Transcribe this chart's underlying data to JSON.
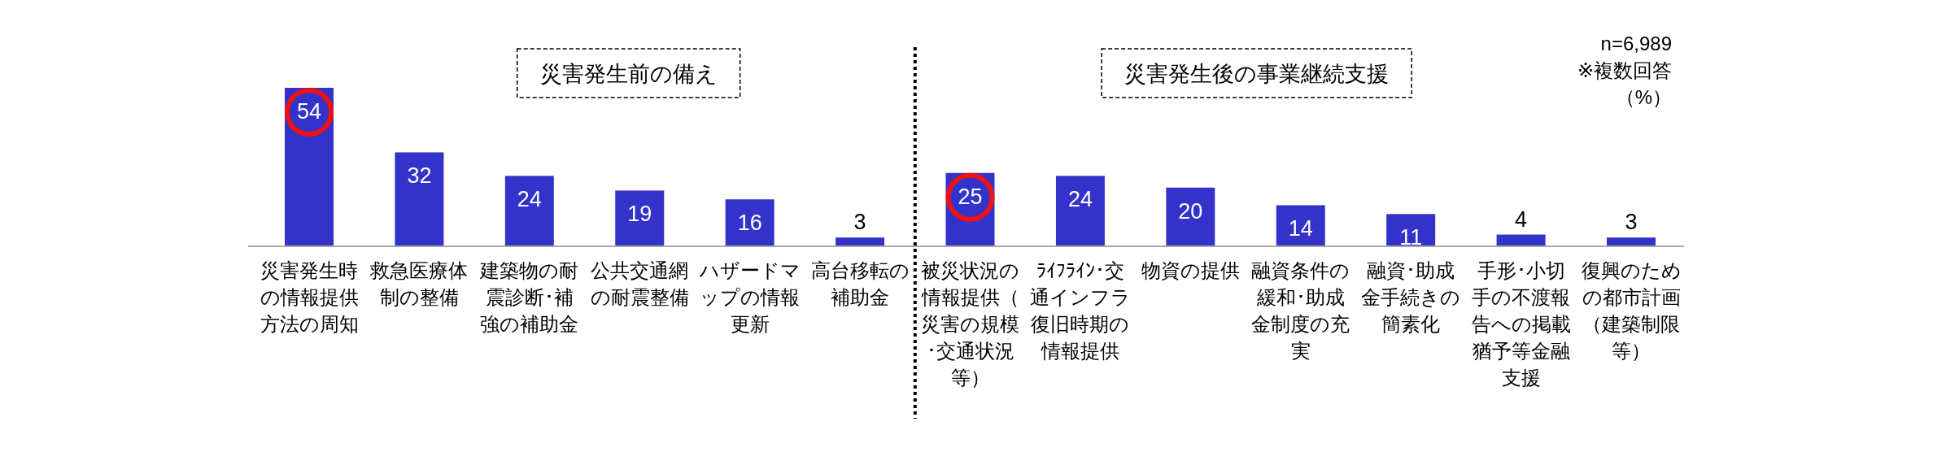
{
  "chart_data": {
    "type": "bar",
    "color": "#3333cc",
    "data_labels": true,
    "categories": [
      "災害発生時の情報提供方法の周知",
      "救急医療体制の整備",
      "建築物の耐震診断･補強の補助金",
      "公共交通網の耐震整備",
      "ハザードマップの情報更新",
      "高台移転の補助金",
      "被災状況の情報提供（災害の規模･交通状況等）",
      "ﾗｲﾌﾗｲﾝ･交通インフラ復旧時期の情報提供",
      "物資の提供",
      "融資条件の緩和･助成金制度の充実",
      "融資･助成金手続きの簡素化",
      "手形･小切手の不渡報告への掲載猶予等金融支援",
      "復興のための都市計画（建築制限等）"
    ],
    "values": [
      54,
      32,
      24,
      19,
      16,
      3,
      25,
      24,
      20,
      14,
      11,
      4,
      3
    ],
    "annotations": [
      "災害発生前の備え",
      "災害発生後の事業継続支援",
      "n=6,989",
      "※複数回答",
      "（%）"
    ]
  }
}
